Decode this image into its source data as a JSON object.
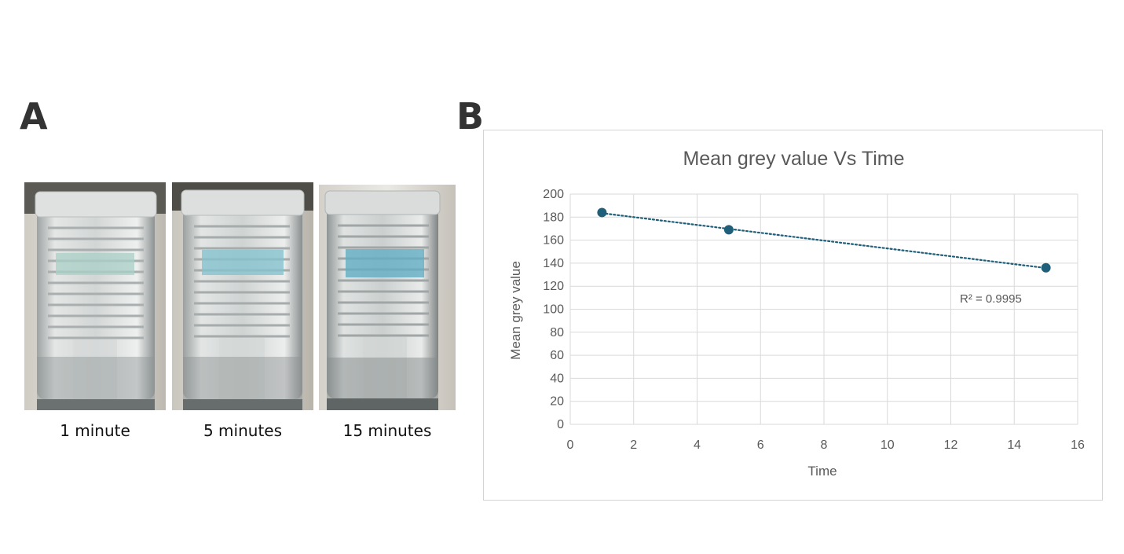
{
  "panels": {
    "a_label": "A",
    "b_label": "B"
  },
  "photos": [
    {
      "caption": "1 minute"
    },
    {
      "caption": "5 minutes"
    },
    {
      "caption": "15 minutes"
    }
  ],
  "chart_data": {
    "type": "scatter",
    "title": "Mean grey value Vs Time",
    "xlabel": "Time",
    "ylabel": "Mean grey value",
    "xlim": [
      0,
      16
    ],
    "ylim": [
      0,
      200
    ],
    "xticks": [
      0,
      2,
      4,
      6,
      8,
      10,
      12,
      14,
      16
    ],
    "yticks": [
      0,
      20,
      40,
      60,
      80,
      100,
      120,
      140,
      160,
      180,
      200
    ],
    "grid": true,
    "series": [
      {
        "x": [
          1,
          5,
          15
        ],
        "y": [
          184,
          169,
          136
        ],
        "color": "#1f5f7a"
      }
    ],
    "trendline": {
      "type": "linear",
      "style": "dotted",
      "color": "#1f5f7a"
    },
    "annotation": {
      "text": "R² = 0.9995"
    }
  }
}
